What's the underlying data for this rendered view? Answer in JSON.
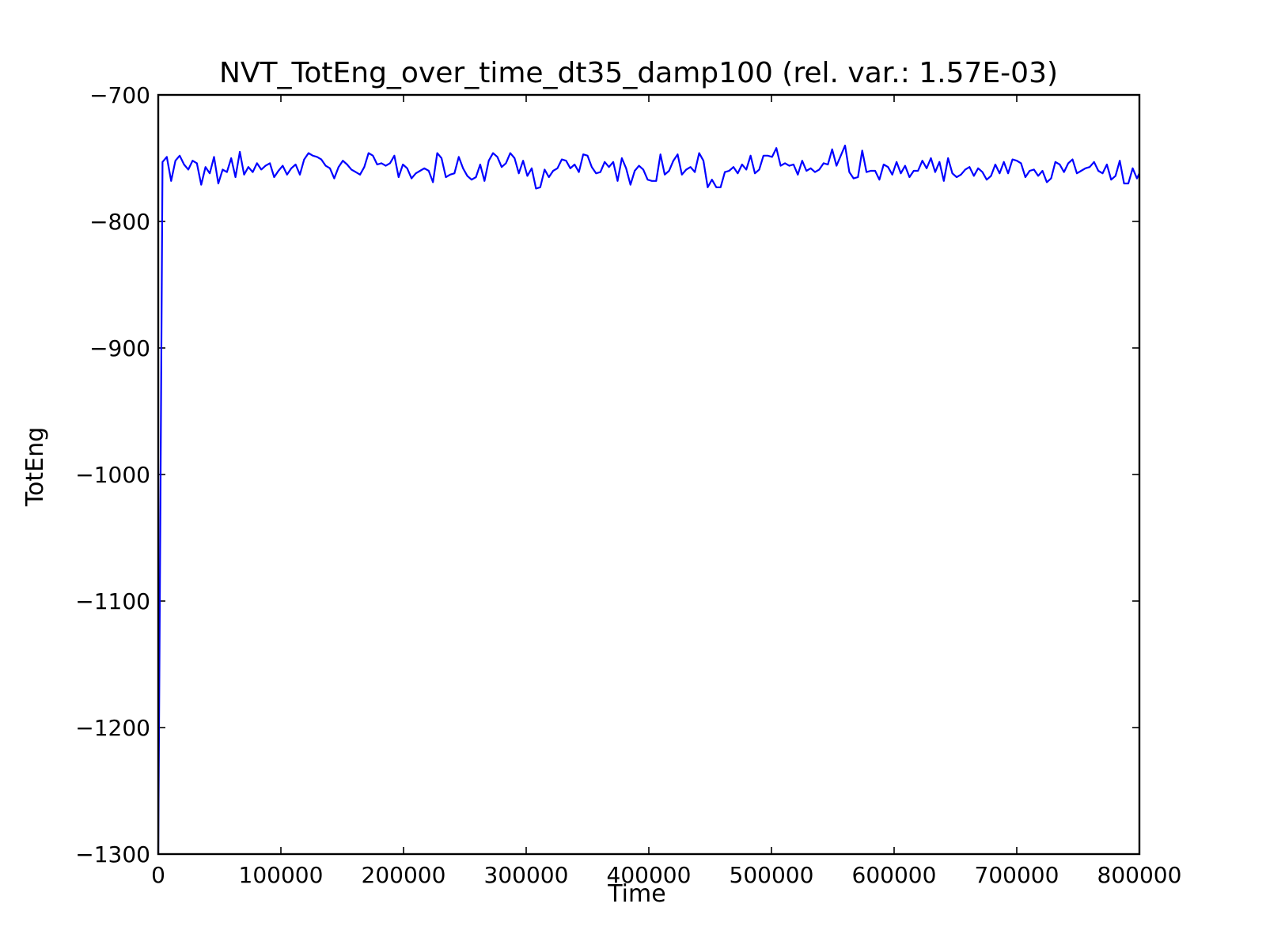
{
  "chart_data": {
    "type": "line",
    "title": "NVT_TotEng_over_time_dt35_damp100 (rel. var.: 1.57E-03)",
    "xlabel": "Time",
    "ylabel": "TotEng",
    "xlim": [
      0,
      800000
    ],
    "ylim": [
      -1300,
      -700
    ],
    "xticks": [
      0,
      100000,
      200000,
      300000,
      400000,
      500000,
      600000,
      700000,
      800000
    ],
    "xtick_labels": [
      "0",
      "100000",
      "200000",
      "300000",
      "400000",
      "500000",
      "600000",
      "700000",
      "800000"
    ],
    "yticks": [
      -700,
      -800,
      -900,
      -1000,
      -1100,
      -1200,
      -1300
    ],
    "ytick_labels": [
      "−700",
      "−800",
      "−900",
      "−1000",
      "−1100",
      "−1200",
      "−1300"
    ],
    "grid": false,
    "line_color": "#0000ff",
    "series": [
      {
        "x": [
          0,
          3500,
          7000,
          10500,
          14000,
          17500,
          21000,
          24500,
          28000,
          31500,
          35000,
          38500,
          42000,
          45500,
          49000,
          52500,
          56000,
          59500,
          63000,
          66500,
          70000,
          73500,
          77000,
          80500,
          84000,
          87500,
          91000,
          94500,
          98000,
          101500,
          105000,
          108500,
          112000,
          115500,
          119000,
          122500,
          126000,
          129500,
          133000,
          136500,
          140000,
          143500,
          147000,
          150500,
          154000,
          157500,
          161000,
          164500,
          168000,
          171500,
          175000,
          178500,
          182000,
          185500,
          189000,
          192500,
          196000,
          199500,
          203000,
          206500,
          210000,
          213500,
          217000,
          220500,
          224000,
          227500,
          231000,
          234500,
          238000,
          241500,
          245000,
          248500,
          252000,
          255500,
          259000,
          262500,
          266000,
          269500,
          273000,
          276500,
          280000,
          283500,
          287000,
          290500,
          294000,
          297500,
          301000,
          304500,
          308000,
          311500,
          315000,
          318500,
          322000,
          325500,
          329000,
          332500,
          336000,
          339500,
          343000,
          346500,
          350000,
          353500,
          357000,
          360500,
          364000,
          367500,
          371000,
          374500,
          378000,
          381500,
          385000,
          388500,
          392000,
          395500,
          399000,
          402500,
          406000,
          409500,
          413000,
          416500,
          420000,
          423500,
          427000,
          430500,
          434000,
          437500,
          441000,
          444500,
          448000,
          451500,
          455000,
          458500,
          462000,
          465500,
          469000,
          472500,
          476000,
          479500,
          483000,
          486500,
          490000,
          493500,
          497000,
          500500,
          504000,
          507500,
          511000,
          514500,
          518000,
          521500,
          525000,
          528500,
          532000,
          535500,
          539000,
          542500,
          546000,
          549500,
          553000,
          556500,
          560000,
          563500,
          567000,
          570500,
          574000,
          577500,
          581000,
          584500,
          588000,
          591500,
          595000,
          598500,
          602000,
          605500,
          609000,
          612500,
          616000,
          619500,
          623000,
          626500,
          630000,
          633500,
          637000,
          640500,
          644000,
          647500,
          651000,
          654500,
          658000,
          661500,
          665000,
          668500,
          672000,
          675500,
          679000,
          682500,
          686000,
          689500,
          693000,
          696500,
          700000,
          703500,
          707000,
          710500,
          714000,
          717500,
          721000,
          724500,
          728000,
          731500,
          735000,
          738500,
          742000,
          745500,
          749000,
          752500,
          756000,
          759500,
          763000,
          766500,
          770000,
          773500,
          777000,
          780500,
          784000,
          787500,
          791000,
          794500,
          798000,
          800000
        ],
        "y": [
          -1300,
          -753,
          -749,
          -768,
          -752,
          -748,
          -755,
          -759,
          -752,
          -754,
          -771,
          -757,
          -762,
          -749,
          -770,
          -759,
          -761,
          -750,
          -765,
          -745,
          -763,
          -757,
          -761,
          -754,
          -759,
          -756,
          -754,
          -765,
          -760,
          -756,
          -763,
          -758,
          -755,
          -763,
          -751,
          -746,
          -748,
          -749,
          -751,
          -756,
          -758,
          -766,
          -757,
          -752,
          -755,
          -759,
          -761,
          -763,
          -757,
          -746,
          -748,
          -755,
          -754,
          -756,
          -754,
          -748,
          -765,
          -755,
          -758,
          -766,
          -762,
          -760,
          -758,
          -760,
          -769,
          -746,
          -750,
          -765,
          -763,
          -762,
          -749,
          -758,
          -764,
          -767,
          -765,
          -755,
          -768,
          -752,
          -746,
          -749,
          -757,
          -754,
          -746,
          -750,
          -762,
          -752,
          -764,
          -758,
          -774,
          -773,
          -759,
          -765,
          -760,
          -758,
          -751,
          -752,
          -758,
          -755,
          -761,
          -747,
          -748,
          -757,
          -762,
          -761,
          -753,
          -757,
          -753,
          -768,
          -750,
          -758,
          -771,
          -760,
          -756,
          -759,
          -767,
          -768,
          -768,
          -747,
          -763,
          -760,
          -752,
          -747,
          -763,
          -759,
          -757,
          -761,
          -746,
          -752,
          -773,
          -767,
          -773,
          -773,
          -761,
          -760,
          -757,
          -762,
          -755,
          -759,
          -748,
          -762,
          -759,
          -748,
          -748,
          -749,
          -742,
          -756,
          -754,
          -756,
          -755,
          -763,
          -752,
          -760,
          -758,
          -761,
          -759,
          -754,
          -755,
          -743,
          -756,
          -748,
          -740,
          -761,
          -766,
          -765,
          -744,
          -761,
          -760,
          -760,
          -767,
          -755,
          -757,
          -763,
          -753,
          -762,
          -756,
          -765,
          -760,
          -760,
          -752,
          -758,
          -750,
          -761,
          -753,
          -768,
          -750,
          -762,
          -765,
          -763,
          -759,
          -757,
          -764,
          -758,
          -761,
          -767,
          -764,
          -755,
          -762,
          -753,
          -762,
          -751,
          -752,
          -754,
          -765,
          -760,
          -759,
          -764,
          -760,
          -769,
          -766,
          -753,
          -755,
          -761,
          -754,
          -751,
          -762,
          -760,
          -758,
          -757,
          -753,
          -760,
          -762,
          -755,
          -767,
          -764,
          -752,
          -770,
          -770,
          -758,
          -766,
          -762
        ]
      }
    ]
  }
}
